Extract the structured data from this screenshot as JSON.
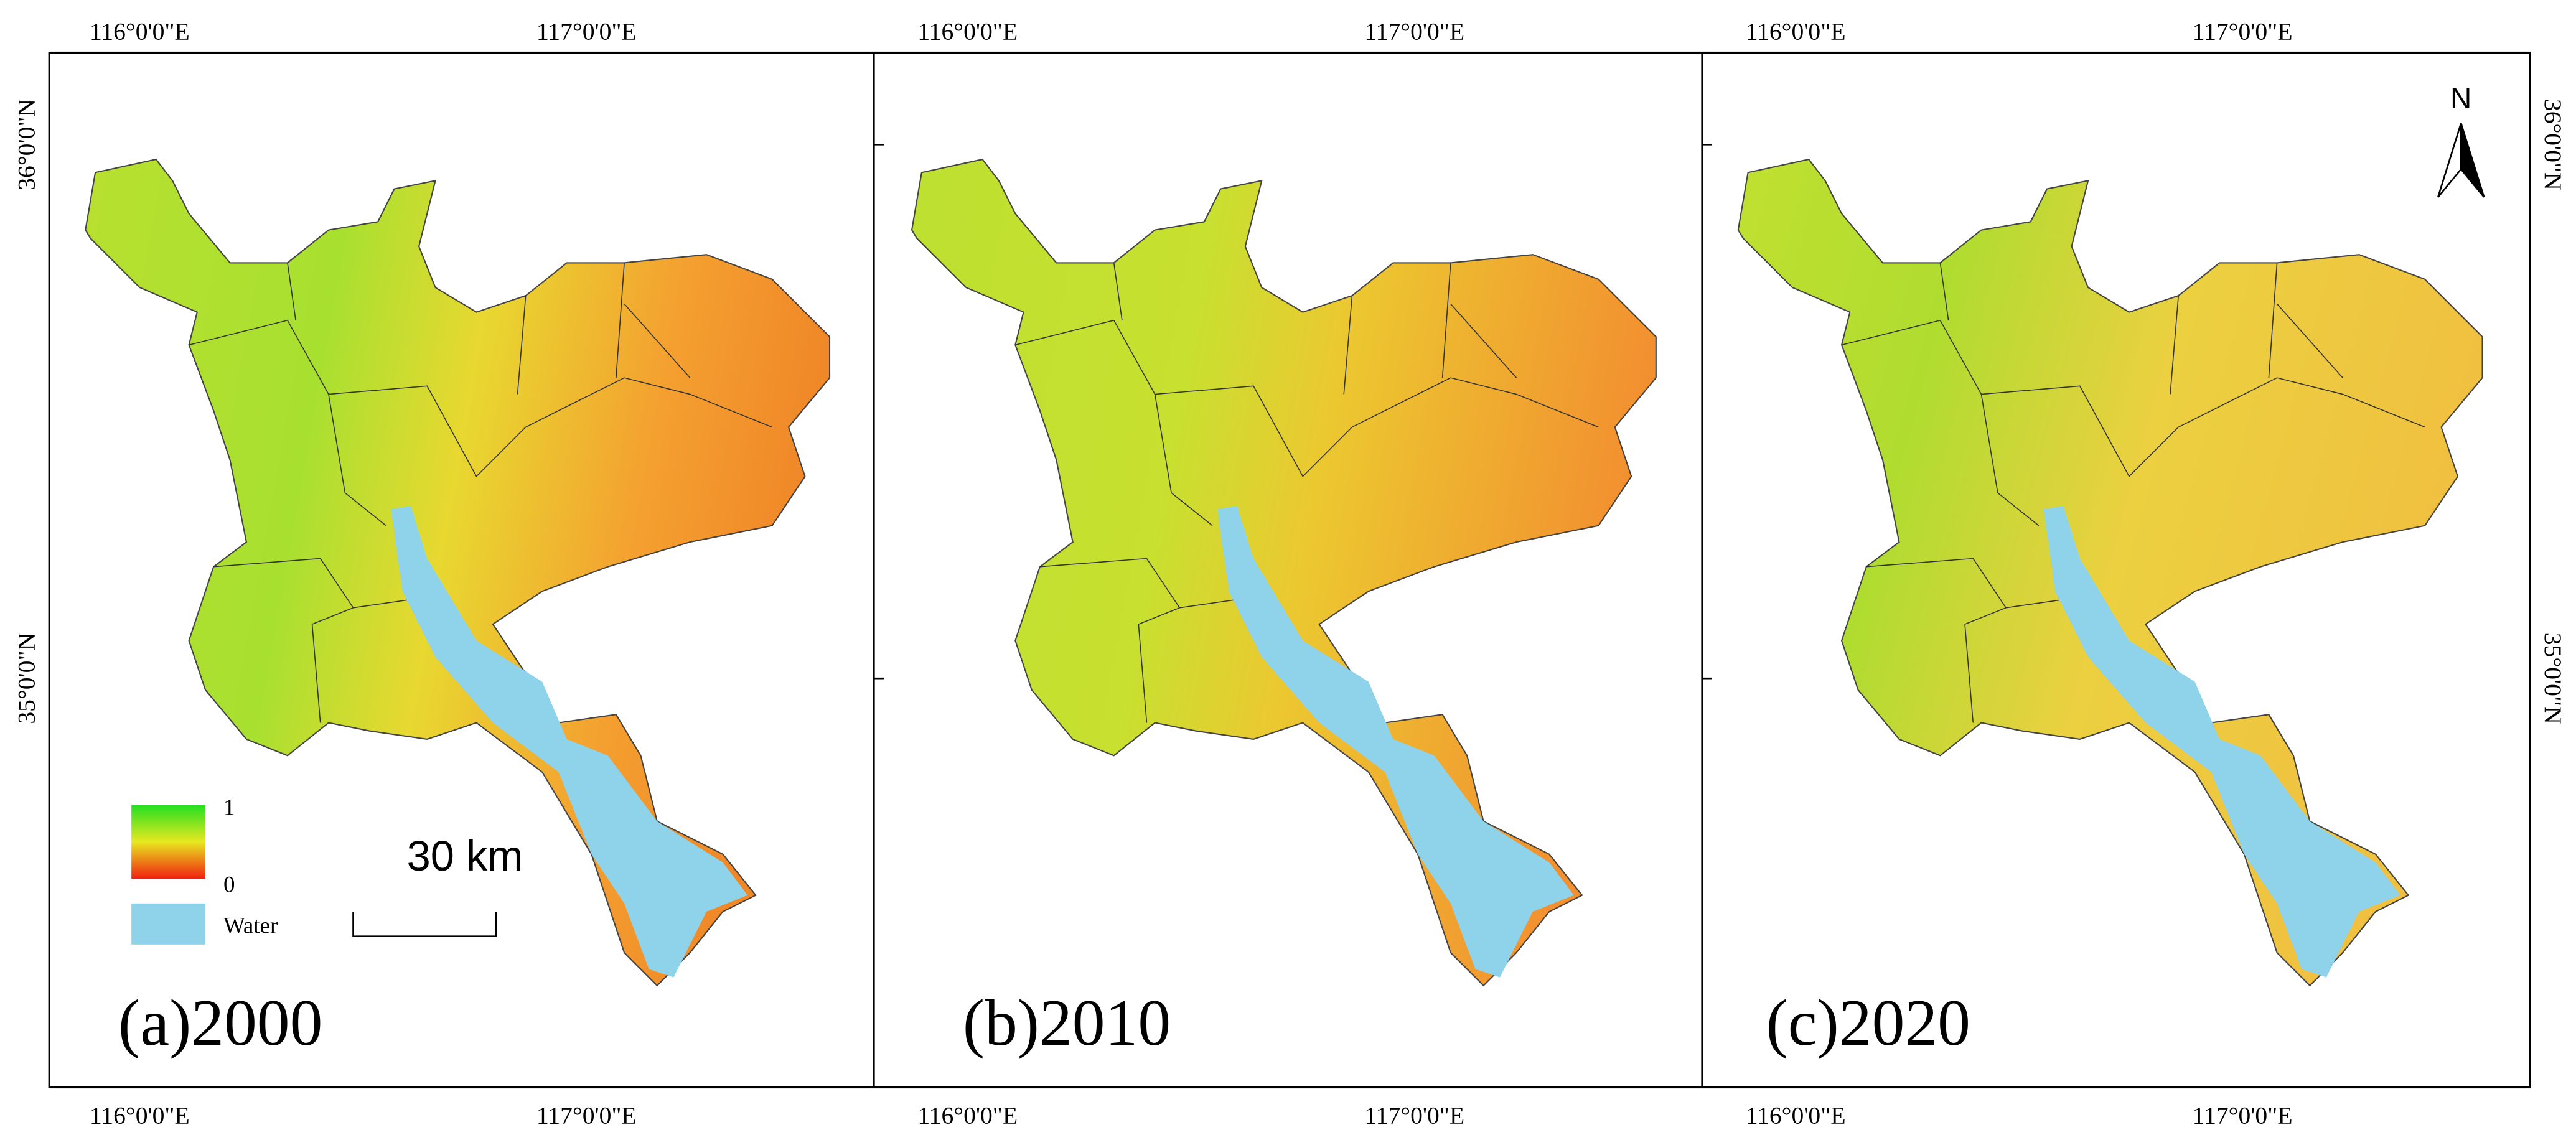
{
  "panels": [
    {
      "label": "(a)2000"
    },
    {
      "label": "(b)2010"
    },
    {
      "label": "(c)2020"
    }
  ],
  "longitude_labels": [
    "116°0'0\"E",
    "117°0'0\"E"
  ],
  "latitude_labels": [
    "36°0'0\"N",
    "35°0'0\"N"
  ],
  "legend": {
    "high": "1",
    "low": "0",
    "water": "Water"
  },
  "scale_bar": "30 km",
  "north": "N"
}
